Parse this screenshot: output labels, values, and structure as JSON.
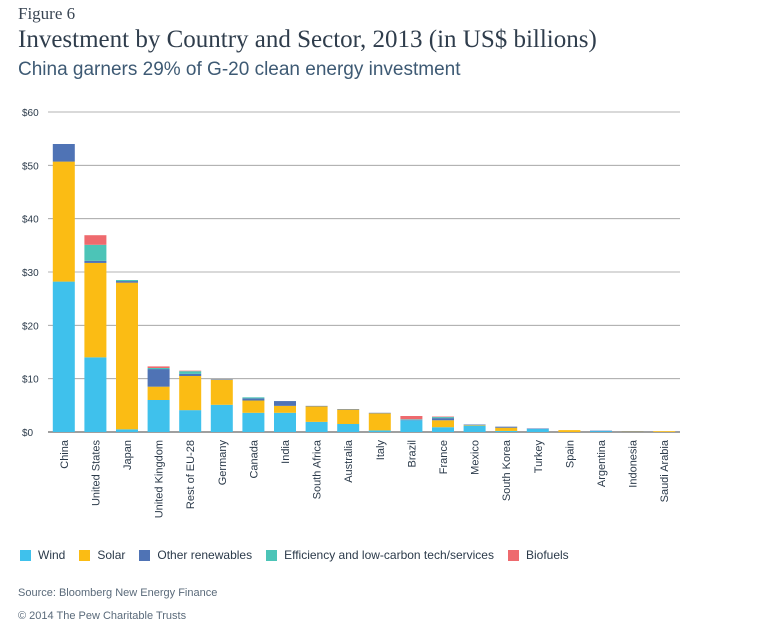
{
  "figure_label": "Figure 6",
  "source": "Source: Bloomberg New Energy Finance",
  "copyright": "© 2014 The Pew Charitable Trusts",
  "chart_data": {
    "type": "bar",
    "stacked": true,
    "title": "Investment by Country and Sector, 2013 (in US$ billions)",
    "subtitle": "China garners 29% of G-20 clean energy investment",
    "xlabel": "",
    "ylabel": "",
    "ylim": [
      0,
      60
    ],
    "yticks": [
      0,
      10,
      20,
      30,
      40,
      50,
      60
    ],
    "ytick_labels": [
      "$0",
      "$10",
      "$20",
      "$30",
      "$40",
      "$50",
      "$60"
    ],
    "grid": true,
    "legend_position": "bottom",
    "categories": [
      "China",
      "United States",
      "Japan",
      "United Kingdom",
      "Rest of EU-28",
      "Germany",
      "Canada",
      "India",
      "South Africa",
      "Australia",
      "Italy",
      "Brazil",
      "France",
      "Mexico",
      "South Korea",
      "Turkey",
      "Spain",
      "Argentina",
      "Indonesia",
      "Saudi Arabia"
    ],
    "series": [
      {
        "name": "Wind",
        "color": "#3fc1ec",
        "values": [
          28.2,
          14.0,
          0.5,
          6.0,
          4.1,
          5.1,
          3.6,
          3.6,
          1.9,
          1.5,
          0.3,
          2.2,
          0.9,
          1.2,
          0.2,
          0.6,
          0.0,
          0.2,
          0.0,
          0.0
        ]
      },
      {
        "name": "Solar",
        "color": "#fbbc14",
        "values": [
          22.5,
          17.7,
          27.5,
          2.5,
          6.4,
          4.7,
          2.3,
          1.3,
          2.9,
          2.7,
          3.2,
          0.0,
          1.3,
          0.1,
          0.6,
          0.0,
          0.35,
          0.0,
          0.1,
          0.15
        ]
      },
      {
        "name": "Other renewables",
        "color": "#4f73b5",
        "values": [
          3.3,
          0.4,
          0.3,
          3.3,
          0.4,
          0.1,
          0.4,
          0.9,
          0.1,
          0.1,
          0.1,
          0.1,
          0.4,
          0.1,
          0.2,
          0.05,
          0.0,
          0.05,
          0.05,
          0.0
        ]
      },
      {
        "name": "Efficiency and low-carbon tech/services",
        "color": "#4cc4b7",
        "values": [
          0.0,
          3.0,
          0.2,
          0.2,
          0.5,
          0.0,
          0.2,
          0.0,
          0.0,
          0.0,
          0.0,
          0.1,
          0.2,
          0.0,
          0.0,
          0.0,
          0.0,
          0.0,
          0.0,
          0.0
        ]
      },
      {
        "name": "Biofuels",
        "color": "#ee6a6e",
        "values": [
          0.0,
          1.8,
          0.0,
          0.3,
          0.1,
          0.0,
          0.0,
          0.0,
          0.0,
          0.0,
          0.0,
          0.6,
          0.1,
          0.0,
          0.0,
          0.0,
          0.0,
          0.0,
          0.0,
          0.0
        ]
      }
    ]
  }
}
